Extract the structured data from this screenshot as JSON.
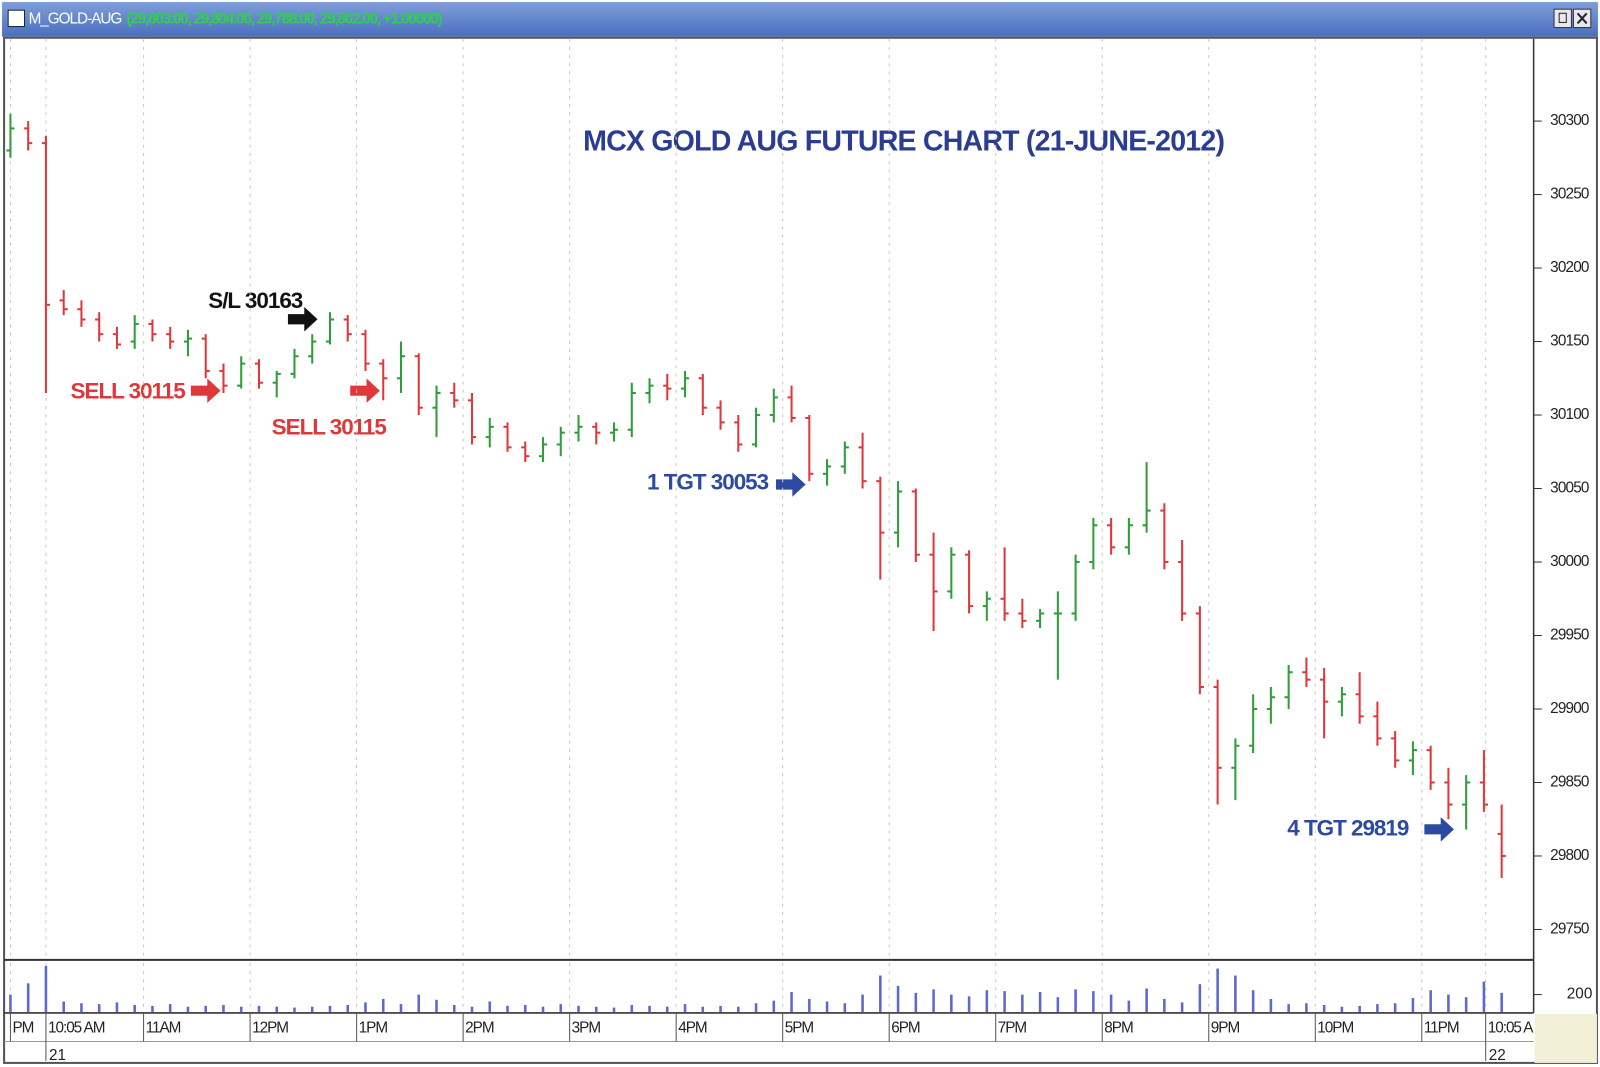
{
  "chart_data": {
    "type": "ohlc",
    "window_title": "M_GOLD-AUG",
    "window_values": "(29,803.00, 29,804.00, 29,788.00, 29,802.00, +1.00000)",
    "title": "MCX GOLD AUG FUTURE CHART (21-JUNE-2012)",
    "open": [
      30280,
      30295,
      30285,
      30178,
      30172,
      30165,
      30155,
      30150,
      30162,
      30155,
      30150,
      30152,
      30130,
      30120,
      30135,
      30122,
      30128,
      30140,
      30150,
      30165,
      30155,
      30135,
      30125,
      30140,
      30105,
      30115,
      30110,
      30085,
      30092,
      30078,
      30072,
      30080,
      30088,
      30092,
      30088,
      30090,
      30115,
      30120,
      30118,
      30125,
      30105,
      30095,
      30080,
      30100,
      30112,
      30098,
      30060,
      30065,
      30078,
      30055,
      30020,
      30048,
      30005,
      29980,
      30005,
      29970,
      29975,
      29965,
      29960,
      29965,
      29965,
      30000,
      30025,
      30010,
      30025,
      30035,
      30000,
      29965,
      29915,
      29860,
      29875,
      29900,
      29908,
      29925,
      29920,
      29905,
      29910,
      29895,
      29880,
      29865,
      29872,
      29850,
      29835,
      29850,
      29815
    ],
    "high": [
      30305,
      30300,
      30290,
      30185,
      30178,
      30170,
      30160,
      30168,
      30165,
      30160,
      30158,
      30155,
      30135,
      30140,
      30138,
      30130,
      30145,
      30155,
      30170,
      30168,
      30158,
      30138,
      30150,
      30142,
      30120,
      30122,
      30115,
      30098,
      30095,
      30082,
      30085,
      30092,
      30100,
      30095,
      30095,
      30122,
      30125,
      30128,
      30130,
      30128,
      30110,
      30100,
      30105,
      30118,
      30120,
      30100,
      30070,
      30082,
      30088,
      30058,
      30055,
      30050,
      30020,
      30010,
      30008,
      29980,
      30010,
      29975,
      29968,
      29980,
      30005,
      30030,
      30030,
      30030,
      30068,
      30040,
      30015,
      29970,
      29920,
      29880,
      29910,
      29915,
      29930,
      29935,
      29928,
      29915,
      29925,
      29905,
      29885,
      29878,
      29875,
      29860,
      29855,
      29872,
      29835
    ],
    "low": [
      30275,
      30280,
      30115,
      30168,
      30160,
      30150,
      30145,
      30145,
      30150,
      30145,
      30140,
      30125,
      30115,
      30118,
      30118,
      30112,
      30125,
      30135,
      30148,
      30150,
      30130,
      30110,
      30115,
      30100,
      30085,
      30105,
      30080,
      30078,
      30075,
      30068,
      30068,
      30072,
      30082,
      30080,
      30082,
      30085,
      30108,
      30110,
      30112,
      30100,
      30090,
      30075,
      30078,
      30095,
      30095,
      30055,
      30052,
      30060,
      30050,
      29988,
      30010,
      30000,
      29953,
      29975,
      29965,
      29960,
      29960,
      29955,
      29955,
      29920,
      29960,
      29995,
      30005,
      30005,
      30020,
      29995,
      29960,
      29910,
      29835,
      29838,
      29870,
      29890,
      29900,
      29915,
      29880,
      29895,
      29890,
      29875,
      29860,
      29855,
      29845,
      29825,
      29818,
      29830,
      29785
    ],
    "close": [
      30295,
      30285,
      30175,
      30172,
      30165,
      30155,
      30148,
      30162,
      30155,
      30150,
      30152,
      30130,
      30120,
      30135,
      30122,
      30128,
      30140,
      30150,
      30165,
      30155,
      30135,
      30125,
      30140,
      30105,
      30115,
      30110,
      30085,
      30092,
      30078,
      30072,
      30080,
      30088,
      30092,
      30088,
      30090,
      30115,
      30120,
      30118,
      30125,
      30105,
      30095,
      30080,
      30100,
      30112,
      30098,
      30060,
      30065,
      30078,
      30055,
      30020,
      30048,
      30005,
      29980,
      30005,
      29970,
      29975,
      29965,
      29960,
      29965,
      29965,
      30000,
      30025,
      30010,
      30025,
      30035,
      30000,
      29965,
      29915,
      29860,
      29875,
      29900,
      29908,
      29925,
      29920,
      29905,
      29910,
      29895,
      29880,
      29865,
      29872,
      29850,
      29835,
      29850,
      29835,
      29800
    ],
    "volume": [
      200,
      330,
      530,
      120,
      100,
      90,
      110,
      80,
      70,
      90,
      60,
      70,
      80,
      60,
      70,
      60,
      50,
      60,
      70,
      80,
      110,
      150,
      90,
      200,
      140,
      80,
      60,
      120,
      70,
      80,
      60,
      90,
      70,
      60,
      50,
      80,
      70,
      60,
      90,
      60,
      70,
      60,
      100,
      130,
      230,
      150,
      120,
      100,
      200,
      420,
      300,
      220,
      260,
      200,
      180,
      250,
      240,
      200,
      230,
      170,
      260,
      240,
      200,
      130,
      270,
      150,
      110,
      320,
      500,
      420,
      250,
      150,
      90,
      100,
      80,
      60,
      70,
      90,
      100,
      160,
      250,
      200,
      170,
      350,
      220
    ],
    "up_color": "#2e9e3a",
    "down_color": "#e0383a",
    "volume_color": "#5a68d0",
    "xlim": [
      -0.3,
      85.8
    ],
    "xticks": [
      {
        "value": 0,
        "label": "PM"
      },
      {
        "value": 2,
        "label": "10:05 AM"
      },
      {
        "value": 7.5,
        "label": "11AM"
      },
      {
        "value": 13.5,
        "label": "12PM"
      },
      {
        "value": 19.5,
        "label": "1PM"
      },
      {
        "value": 25.5,
        "label": "2PM"
      },
      {
        "value": 31.5,
        "label": "3PM"
      },
      {
        "value": 37.5,
        "label": "4PM"
      },
      {
        "value": 43.5,
        "label": "5PM"
      },
      {
        "value": 49.5,
        "label": "6PM"
      },
      {
        "value": 55.5,
        "label": "7PM"
      },
      {
        "value": 61.5,
        "label": "8PM"
      },
      {
        "value": 67.5,
        "label": "9PM"
      },
      {
        "value": 73.5,
        "label": "10PM"
      },
      {
        "value": 79.5,
        "label": "11PM"
      },
      {
        "value": 83.1,
        "label": "10:05 A"
      }
    ],
    "date_labels": [
      {
        "value": 2,
        "label": "21"
      },
      {
        "value": 83.1,
        "label": "22"
      }
    ],
    "xgrid": true,
    "ylim": [
      29730,
      30356
    ],
    "yticks": [
      29750,
      29800,
      29850,
      29900,
      29950,
      30000,
      30050,
      30100,
      30150,
      30200,
      30250,
      30300
    ],
    "volume_ylim": [
      0,
      565
    ],
    "volume_yticks": [
      200
    ],
    "annotations": [
      {
        "text": "S/L 30163",
        "color": "#111111"
      },
      {
        "text": "SELL 30115",
        "color": "#e0383a"
      },
      {
        "text": "SELL 30115",
        "color": "#e0383a"
      },
      {
        "text": "1 TGT 30053",
        "color": "#2b4aa0"
      },
      {
        "text": "4 TGT 29819",
        "color": "#2b4aa0"
      }
    ]
  }
}
